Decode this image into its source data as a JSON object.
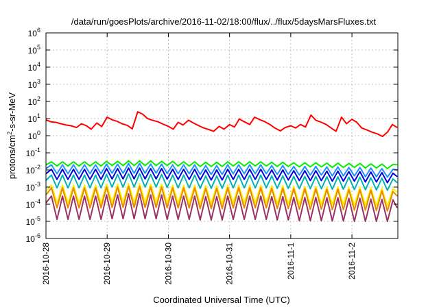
{
  "chart_data": {
    "type": "line",
    "title": "/data/run/goesPlots/archive/2016-11-02/18:00/flux/../flux/5daysMarsFluxes.txt",
    "xlabel": "Coordinated Universal Time (UTC)",
    "ylabel": "protons/cm2-s-sr-MeV",
    "ylabel_parts": {
      "base": "protons/cm",
      "sup": "2",
      "rest": "-s-sr-MeV"
    },
    "yscale": "log",
    "ylim_exp": [
      -6,
      6
    ],
    "y_ticks": [
      "10-6",
      "10-5",
      "10-4",
      "10-3",
      "10-2",
      "10-1",
      "100",
      "101",
      "102",
      "103",
      "104",
      "105",
      "106"
    ],
    "y_tick_exponents": [
      "-6",
      "-5",
      "-4",
      "-3",
      "-2",
      "-1",
      "0",
      "1",
      "2",
      "3",
      "4",
      "5",
      "6"
    ],
    "x_range_days": [
      "2016-10-28",
      "2016-11-02 18:00"
    ],
    "x_ticks": [
      "2016-10-28",
      "2016-10-29",
      "2016-10-30",
      "2016-10-31",
      "2016-11-1",
      "2016-11-2"
    ],
    "grid": true,
    "series": [
      {
        "color": "#ff0000",
        "x_days": [
          0.0,
          0.08,
          0.16,
          0.24,
          0.33,
          0.41,
          0.5,
          0.58,
          0.66,
          0.74,
          0.83,
          0.91,
          1.0,
          1.08,
          1.16,
          1.24,
          1.33,
          1.41,
          1.5,
          1.58,
          1.66,
          1.74,
          1.83,
          1.91,
          2.0,
          2.08,
          2.16,
          2.24,
          2.33,
          2.41,
          2.5,
          2.58,
          2.66,
          2.74,
          2.83,
          2.91,
          3.0,
          3.08,
          3.16,
          3.24,
          3.33,
          3.41,
          3.5,
          3.58,
          3.66,
          3.74,
          3.83,
          3.91,
          4.0,
          4.08,
          4.16,
          4.24,
          4.33,
          4.41,
          4.5,
          4.58,
          4.66,
          4.74,
          4.83,
          4.91,
          5.0,
          5.08,
          5.16,
          5.24,
          5.33,
          5.41,
          5.5,
          5.58,
          5.66,
          5.74
        ],
        "y": [
          8.5,
          6.5,
          6.0,
          5.0,
          4.2,
          3.8,
          3.0,
          5.0,
          3.8,
          2.4,
          5.5,
          3.4,
          12.0,
          8.5,
          7.0,
          5.0,
          4.0,
          2.5,
          25.0,
          18.0,
          10.0,
          8.0,
          6.5,
          4.8,
          3.5,
          2.4,
          6.0,
          4.2,
          8.0,
          5.5,
          3.8,
          2.8,
          2.3,
          1.8,
          3.5,
          2.4,
          4.5,
          3.2,
          9.5,
          6.5,
          4.5,
          12.0,
          8.5,
          6.5,
          4.5,
          2.8,
          1.9,
          3.0,
          3.8,
          2.8,
          4.5,
          3.2,
          16.0,
          8.0,
          6.0,
          4.5,
          2.8,
          1.8,
          12.0,
          5.0,
          9.0,
          6.0,
          2.8,
          2.2,
          1.6,
          1.3,
          0.9,
          1.6,
          4.5,
          3.0
        ]
      },
      {
        "color": "#00ee00",
        "x_days": [
          0.0,
          0.09,
          0.18,
          0.27,
          0.36,
          0.45,
          0.54,
          0.63,
          0.72,
          0.81,
          0.9,
          0.99,
          1.08,
          1.17,
          1.26,
          1.35,
          1.44,
          1.53,
          1.62,
          1.71,
          1.8,
          1.89,
          1.98,
          2.07,
          2.16,
          2.25,
          2.34,
          2.43,
          2.52,
          2.61,
          2.7,
          2.79,
          2.88,
          2.97,
          3.06,
          3.15,
          3.24,
          3.33,
          3.42,
          3.51,
          3.6,
          3.69,
          3.78,
          3.87,
          3.96,
          4.05,
          4.14,
          4.23,
          4.32,
          4.41,
          4.5,
          4.59,
          4.68,
          4.77,
          4.86,
          4.95,
          5.04,
          5.13,
          5.22,
          5.31,
          5.4,
          5.49,
          5.58,
          5.67,
          5.74
        ],
        "y": [
          0.02,
          0.03,
          0.017,
          0.03,
          0.017,
          0.03,
          0.017,
          0.03,
          0.017,
          0.03,
          0.017,
          0.032,
          0.018,
          0.032,
          0.018,
          0.034,
          0.018,
          0.034,
          0.018,
          0.034,
          0.018,
          0.032,
          0.018,
          0.032,
          0.017,
          0.03,
          0.017,
          0.03,
          0.016,
          0.028,
          0.016,
          0.028,
          0.016,
          0.03,
          0.017,
          0.03,
          0.017,
          0.03,
          0.017,
          0.03,
          0.017,
          0.028,
          0.016,
          0.028,
          0.016,
          0.026,
          0.015,
          0.026,
          0.015,
          0.026,
          0.015,
          0.025,
          0.014,
          0.025,
          0.014,
          0.024,
          0.014,
          0.024,
          0.013,
          0.023,
          0.013,
          0.022,
          0.012,
          0.021,
          0.02
        ]
      },
      {
        "color": "#1e90ff",
        "x_days": [
          0.0,
          0.09,
          0.18,
          0.27,
          0.36,
          0.45,
          0.54,
          0.63,
          0.72,
          0.81,
          0.9,
          0.99,
          1.08,
          1.17,
          1.26,
          1.35,
          1.44,
          1.53,
          1.62,
          1.71,
          1.8,
          1.89,
          1.98,
          2.07,
          2.16,
          2.25,
          2.34,
          2.43,
          2.52,
          2.61,
          2.7,
          2.79,
          2.88,
          2.97,
          3.06,
          3.15,
          3.24,
          3.33,
          3.42,
          3.51,
          3.6,
          3.69,
          3.78,
          3.87,
          3.96,
          4.05,
          4.14,
          4.23,
          4.32,
          4.41,
          4.5,
          4.59,
          4.68,
          4.77,
          4.86,
          4.95,
          5.04,
          5.13,
          5.22,
          5.31,
          5.4,
          5.49,
          5.58,
          5.67,
          5.74
        ],
        "y": [
          0.012,
          0.02,
          0.006,
          0.02,
          0.006,
          0.02,
          0.006,
          0.02,
          0.006,
          0.02,
          0.006,
          0.022,
          0.0065,
          0.022,
          0.0065,
          0.024,
          0.0065,
          0.024,
          0.0065,
          0.022,
          0.0065,
          0.022,
          0.0062,
          0.02,
          0.006,
          0.02,
          0.006,
          0.02,
          0.0055,
          0.018,
          0.0055,
          0.018,
          0.0055,
          0.02,
          0.006,
          0.02,
          0.006,
          0.02,
          0.006,
          0.02,
          0.006,
          0.018,
          0.0055,
          0.018,
          0.0055,
          0.016,
          0.005,
          0.016,
          0.005,
          0.016,
          0.005,
          0.015,
          0.0045,
          0.015,
          0.0045,
          0.014,
          0.0045,
          0.014,
          0.004,
          0.013,
          0.004,
          0.012,
          0.0038,
          0.011,
          0.01
        ]
      },
      {
        "color": "#0000dd",
        "x_days": [
          0.0,
          0.09,
          0.18,
          0.27,
          0.36,
          0.45,
          0.54,
          0.63,
          0.72,
          0.81,
          0.9,
          0.99,
          1.08,
          1.17,
          1.26,
          1.35,
          1.44,
          1.53,
          1.62,
          1.71,
          1.8,
          1.89,
          1.98,
          2.07,
          2.16,
          2.25,
          2.34,
          2.43,
          2.52,
          2.61,
          2.7,
          2.79,
          2.88,
          2.97,
          3.06,
          3.15,
          3.24,
          3.33,
          3.42,
          3.51,
          3.6,
          3.69,
          3.78,
          3.87,
          3.96,
          4.05,
          4.14,
          4.23,
          4.32,
          4.41,
          4.5,
          4.59,
          4.68,
          4.77,
          4.86,
          4.95,
          5.04,
          5.13,
          5.22,
          5.31,
          5.4,
          5.49,
          5.58,
          5.67,
          5.74
        ],
        "y": [
          0.006,
          0.011,
          0.0028,
          0.011,
          0.0028,
          0.011,
          0.0028,
          0.011,
          0.0028,
          0.011,
          0.0028,
          0.012,
          0.003,
          0.012,
          0.003,
          0.013,
          0.003,
          0.013,
          0.003,
          0.012,
          0.003,
          0.012,
          0.0029,
          0.011,
          0.0028,
          0.011,
          0.0028,
          0.011,
          0.0026,
          0.01,
          0.0026,
          0.01,
          0.0026,
          0.011,
          0.0028,
          0.011,
          0.0028,
          0.011,
          0.0028,
          0.011,
          0.0028,
          0.01,
          0.0026,
          0.01,
          0.0026,
          0.009,
          0.0024,
          0.009,
          0.0024,
          0.009,
          0.0024,
          0.0085,
          0.0022,
          0.0085,
          0.0022,
          0.008,
          0.0022,
          0.008,
          0.002,
          0.0075,
          0.002,
          0.007,
          0.0018,
          0.0065,
          0.004
        ]
      },
      {
        "color": "#00b3b3",
        "x_days": [
          0.0,
          0.09,
          0.18,
          0.27,
          0.36,
          0.45,
          0.54,
          0.63,
          0.72,
          0.81,
          0.9,
          0.99,
          1.08,
          1.17,
          1.26,
          1.35,
          1.44,
          1.53,
          1.62,
          1.71,
          1.8,
          1.89,
          1.98,
          2.07,
          2.16,
          2.25,
          2.34,
          2.43,
          2.52,
          2.61,
          2.7,
          2.79,
          2.88,
          2.97,
          3.06,
          3.15,
          3.24,
          3.33,
          3.42,
          3.51,
          3.6,
          3.69,
          3.78,
          3.87,
          3.96,
          4.05,
          4.14,
          4.23,
          4.32,
          4.41,
          4.5,
          4.59,
          4.68,
          4.77,
          4.86,
          4.95,
          5.04,
          5.13,
          5.22,
          5.31,
          5.4,
          5.49,
          5.58,
          5.67,
          5.74
        ],
        "y": [
          0.0025,
          0.005,
          0.0009,
          0.005,
          0.0009,
          0.005,
          0.0009,
          0.005,
          0.0009,
          0.005,
          0.0009,
          0.0055,
          0.001,
          0.0055,
          0.001,
          0.006,
          0.001,
          0.006,
          0.001,
          0.0055,
          0.001,
          0.0055,
          0.00095,
          0.005,
          0.0009,
          0.005,
          0.0009,
          0.005,
          0.00085,
          0.0045,
          0.00085,
          0.0045,
          0.00085,
          0.005,
          0.0009,
          0.005,
          0.0009,
          0.005,
          0.0009,
          0.005,
          0.0009,
          0.0045,
          0.00085,
          0.0045,
          0.00085,
          0.0042,
          0.0008,
          0.0042,
          0.0008,
          0.0042,
          0.0008,
          0.004,
          0.00075,
          0.004,
          0.00075,
          0.0038,
          0.00072,
          0.0038,
          0.0007,
          0.0035,
          0.00068,
          0.0033,
          0.00065,
          0.003,
          0.0018
        ]
      },
      {
        "color": "#ffee00",
        "x_days": [
          0.0,
          0.09,
          0.18,
          0.27,
          0.36,
          0.45,
          0.54,
          0.63,
          0.72,
          0.81,
          0.9,
          0.99,
          1.08,
          1.17,
          1.26,
          1.35,
          1.44,
          1.53,
          1.62,
          1.71,
          1.8,
          1.89,
          1.98,
          2.07,
          2.16,
          2.25,
          2.34,
          2.43,
          2.52,
          2.61,
          2.7,
          2.79,
          2.88,
          2.97,
          3.06,
          3.15,
          3.24,
          3.33,
          3.42,
          3.51,
          3.6,
          3.69,
          3.78,
          3.87,
          3.96,
          4.05,
          4.14,
          4.23,
          4.32,
          4.41,
          4.5,
          4.59,
          4.68,
          4.77,
          4.86,
          4.95,
          5.04,
          5.13,
          5.22,
          5.31,
          5.4,
          5.49,
          5.58,
          5.67,
          5.74
        ],
        "y": [
          0.0006,
          0.0013,
          0.00012,
          0.0013,
          0.00012,
          0.0013,
          0.00012,
          0.0013,
          0.00012,
          0.0013,
          0.00012,
          0.0015,
          0.00013,
          0.0015,
          0.00013,
          0.0016,
          0.00013,
          0.0016,
          0.00013,
          0.0015,
          0.00013,
          0.0015,
          0.00012,
          0.0013,
          0.00012,
          0.0013,
          0.00012,
          0.0013,
          0.00011,
          0.0012,
          0.00011,
          0.0012,
          0.00011,
          0.0013,
          0.00012,
          0.0013,
          0.00012,
          0.0013,
          0.00012,
          0.0013,
          0.00012,
          0.0012,
          0.00011,
          0.0012,
          0.00011,
          0.0011,
          0.0001,
          0.0011,
          0.0001,
          0.0011,
          0.0001,
          0.001,
          0.0001,
          0.001,
          0.0001,
          0.00095,
          9e-05,
          0.00095,
          9e-05,
          0.0009,
          8.5e-05,
          0.00085,
          8e-05,
          0.0008,
          0.0005
        ]
      },
      {
        "color": "#e68a00",
        "x_days": [
          0.0,
          0.09,
          0.18,
          0.27,
          0.36,
          0.45,
          0.54,
          0.63,
          0.72,
          0.81,
          0.9,
          0.99,
          1.08,
          1.17,
          1.26,
          1.35,
          1.44,
          1.53,
          1.62,
          1.71,
          1.8,
          1.89,
          1.98,
          2.07,
          2.16,
          2.25,
          2.34,
          2.43,
          2.52,
          2.61,
          2.7,
          2.79,
          2.88,
          2.97,
          3.06,
          3.15,
          3.24,
          3.33,
          3.42,
          3.51,
          3.6,
          3.69,
          3.78,
          3.87,
          3.96,
          4.05,
          4.14,
          4.23,
          4.32,
          4.41,
          4.5,
          4.59,
          4.68,
          4.77,
          4.86,
          4.95,
          5.04,
          5.13,
          5.22,
          5.31,
          5.4,
          5.49,
          5.58,
          5.67,
          5.74
        ],
        "y": [
          0.00035,
          0.0009,
          6e-05,
          0.0009,
          6e-05,
          0.0009,
          6e-05,
          0.0009,
          6e-05,
          0.0009,
          6e-05,
          0.001,
          6.5e-05,
          0.001,
          6.5e-05,
          0.0011,
          6.5e-05,
          0.0011,
          6.5e-05,
          0.001,
          6.5e-05,
          0.001,
          6.2e-05,
          0.0009,
          6e-05,
          0.0009,
          6e-05,
          0.0009,
          5.5e-05,
          0.00085,
          5.5e-05,
          0.00085,
          5.5e-05,
          0.0009,
          6e-05,
          0.0009,
          6e-05,
          0.0009,
          6e-05,
          0.0009,
          6e-05,
          0.00085,
          5.5e-05,
          0.00085,
          5.5e-05,
          0.0008,
          5e-05,
          0.0008,
          5e-05,
          0.0008,
          5e-05,
          0.00075,
          4.8e-05,
          0.00075,
          4.8e-05,
          0.0007,
          4.5e-05,
          0.0007,
          4.5e-05,
          0.00065,
          4.2e-05,
          0.0006,
          4e-05,
          0.00055,
          0.0003
        ]
      },
      {
        "color": "#993366",
        "x_days": [
          0.0,
          0.09,
          0.18,
          0.27,
          0.36,
          0.45,
          0.54,
          0.63,
          0.72,
          0.81,
          0.9,
          0.99,
          1.08,
          1.17,
          1.26,
          1.35,
          1.44,
          1.53,
          1.62,
          1.71,
          1.8,
          1.89,
          1.98,
          2.07,
          2.16,
          2.25,
          2.34,
          2.43,
          2.52,
          2.61,
          2.7,
          2.79,
          2.88,
          2.97,
          3.06,
          3.15,
          3.24,
          3.33,
          3.42,
          3.51,
          3.6,
          3.69,
          3.78,
          3.87,
          3.96,
          4.05,
          4.14,
          4.23,
          4.32,
          4.41,
          4.5,
          4.59,
          4.68,
          4.77,
          4.86,
          4.95,
          5.04,
          5.13,
          5.22,
          5.31,
          5.4,
          5.49,
          5.58,
          5.67,
          5.74
        ],
        "y": [
          0.00012,
          0.0003,
          1.3e-05,
          0.0003,
          1.3e-05,
          0.0003,
          1.3e-05,
          0.0003,
          1.3e-05,
          0.0003,
          1.3e-05,
          0.00035,
          1.4e-05,
          0.00035,
          1.4e-05,
          0.0004,
          1.4e-05,
          0.0004,
          1.4e-05,
          0.00035,
          1.4e-05,
          0.00035,
          1.3e-05,
          0.0003,
          1.3e-05,
          0.0003,
          1.3e-05,
          0.0003,
          1.2e-05,
          0.00028,
          1.2e-05,
          0.00028,
          1.2e-05,
          0.0003,
          1.3e-05,
          0.0003,
          1.3e-05,
          0.0003,
          1.3e-05,
          0.0003,
          1.3e-05,
          0.00028,
          1.2e-05,
          0.00028,
          1.2e-05,
          0.00025,
          1.1e-05,
          0.00025,
          1.1e-05,
          0.00025,
          1.1e-05,
          0.00024,
          1.05e-05,
          0.00024,
          1.05e-05,
          0.00022,
          1e-05,
          0.00022,
          1e-05,
          0.0002,
          1e-05,
          0.00019,
          1e-05,
          0.00018,
          6e-05
        ]
      }
    ]
  }
}
